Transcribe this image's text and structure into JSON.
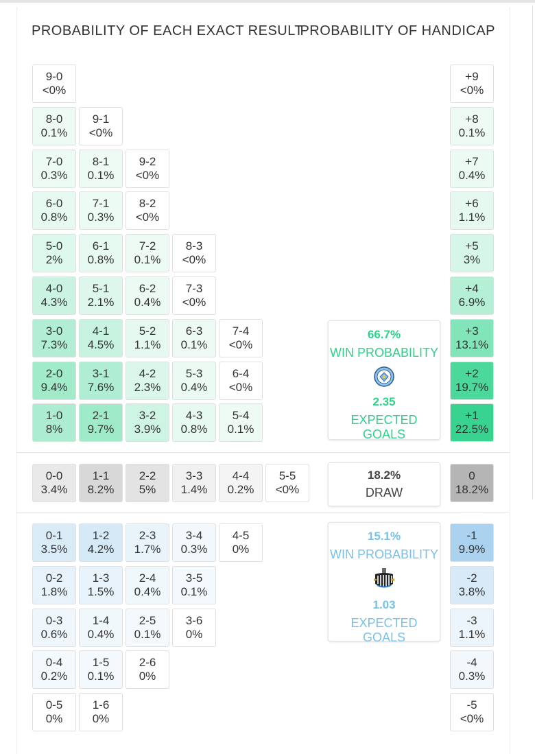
{
  "headers": {
    "exact": "PROBABILITY OF EACH EXACT RESULT",
    "handicap": "PROBABILITY OF HANDICAP"
  },
  "home_rows": [
    [
      [
        "9-0",
        "<0%"
      ]
    ],
    [
      [
        "8-0",
        "0.1%"
      ],
      [
        "9-1",
        "<0%"
      ]
    ],
    [
      [
        "7-0",
        "0.3%"
      ],
      [
        "8-1",
        "0.1%"
      ],
      [
        "9-2",
        "<0%"
      ]
    ],
    [
      [
        "6-0",
        "0.8%"
      ],
      [
        "7-1",
        "0.3%"
      ],
      [
        "8-2",
        "<0%"
      ]
    ],
    [
      [
        "5-0",
        "2%"
      ],
      [
        "6-1",
        "0.8%"
      ],
      [
        "7-2",
        "0.1%"
      ],
      [
        "8-3",
        "<0%"
      ]
    ],
    [
      [
        "4-0",
        "4.3%"
      ],
      [
        "5-1",
        "2.1%"
      ],
      [
        "6-2",
        "0.4%"
      ],
      [
        "7-3",
        "<0%"
      ]
    ],
    [
      [
        "3-0",
        "7.3%"
      ],
      [
        "4-1",
        "4.5%"
      ],
      [
        "5-2",
        "1.1%"
      ],
      [
        "6-3",
        "0.1%"
      ],
      [
        "7-4",
        "<0%"
      ]
    ],
    [
      [
        "2-0",
        "9.4%"
      ],
      [
        "3-1",
        "7.6%"
      ],
      [
        "4-2",
        "2.3%"
      ],
      [
        "5-3",
        "0.4%"
      ],
      [
        "6-4",
        "<0%"
      ]
    ],
    [
      [
        "1-0",
        "8%"
      ],
      [
        "2-1",
        "9.7%"
      ],
      [
        "3-2",
        "3.9%"
      ],
      [
        "4-3",
        "0.8%"
      ],
      [
        "5-4",
        "0.1%"
      ]
    ]
  ],
  "draw_row": [
    [
      "0-0",
      "3.4%"
    ],
    [
      "1-1",
      "8.2%"
    ],
    [
      "2-2",
      "5%"
    ],
    [
      "3-3",
      "1.4%"
    ],
    [
      "4-4",
      "0.2%"
    ],
    [
      "5-5",
      "<0%"
    ]
  ],
  "away_rows": [
    [
      [
        "0-1",
        "3.5%"
      ],
      [
        "1-2",
        "4.2%"
      ],
      [
        "2-3",
        "1.7%"
      ],
      [
        "3-4",
        "0.3%"
      ],
      [
        "4-5",
        "0%"
      ]
    ],
    [
      [
        "0-2",
        "1.8%"
      ],
      [
        "1-3",
        "1.5%"
      ],
      [
        "2-4",
        "0.4%"
      ],
      [
        "3-5",
        "0.1%"
      ]
    ],
    [
      [
        "0-3",
        "0.6%"
      ],
      [
        "1-4",
        "0.4%"
      ],
      [
        "2-5",
        "0.1%"
      ],
      [
        "3-6",
        "0%"
      ]
    ],
    [
      [
        "0-4",
        "0.2%"
      ],
      [
        "1-5",
        "0.1%"
      ],
      [
        "2-6",
        "0%"
      ]
    ],
    [
      [
        "0-5",
        "0%"
      ],
      [
        "1-6",
        "0%"
      ]
    ]
  ],
  "handicap_home": [
    [
      "+9",
      "<0%"
    ],
    [
      "+8",
      "0.1%"
    ],
    [
      "+7",
      "0.4%"
    ],
    [
      "+6",
      "1.1%"
    ],
    [
      "+5",
      "3%"
    ],
    [
      "+4",
      "6.9%"
    ],
    [
      "+3",
      "13.1%"
    ],
    [
      "+2",
      "19.7%"
    ],
    [
      "+1",
      "22.5%"
    ]
  ],
  "handicap_draw": [
    "0",
    "18.2%"
  ],
  "handicap_away": [
    [
      "-1",
      "9.9%"
    ],
    [
      "-2",
      "3.8%"
    ],
    [
      "-3",
      "1.1%"
    ],
    [
      "-4",
      "0.3%"
    ],
    [
      "-5",
      "<0%"
    ]
  ],
  "home_team": {
    "win_prob": "66.7%",
    "win_label": "WIN PROBABILITY",
    "goals": "2.35",
    "goals_label": "EXPECTED GOALS",
    "icon": "manchester-city-crest-icon",
    "color": "#2ed18a"
  },
  "draw": {
    "prob": "18.2%",
    "label": "DRAW"
  },
  "away_team": {
    "win_prob": "15.1%",
    "win_label": "WIN PROBABILITY",
    "goals": "1.03",
    "goals_label": "EXPECTED GOALS",
    "icon": "newcastle-crest-icon",
    "color": "#79c1e8"
  }
}
